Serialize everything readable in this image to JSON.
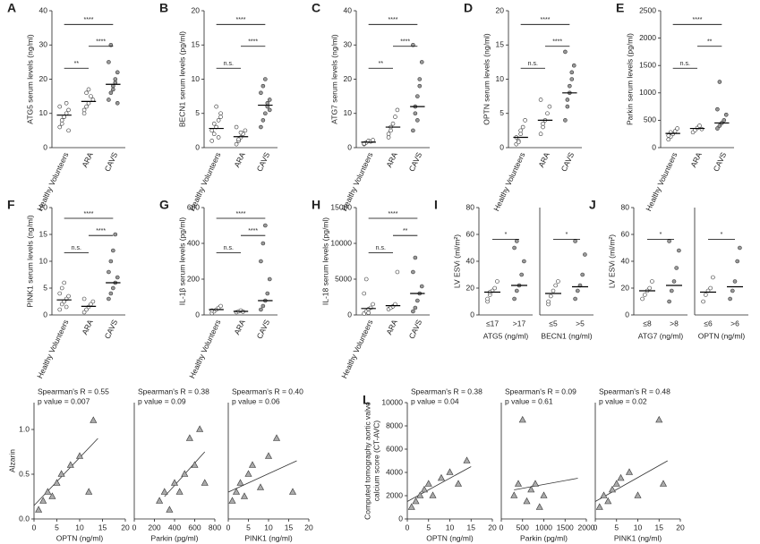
{
  "chart_data": [
    {
      "type": "strip",
      "panel": "A",
      "ylabel": "ATG5 serum levels (ng/ml)",
      "categories": [
        "Healthy Volunteers",
        "ARA",
        "CAVS"
      ],
      "groups": [
        [
          6,
          8,
          9,
          10,
          11,
          12,
          7,
          9,
          13,
          5
        ],
        [
          10,
          12,
          13,
          15,
          14,
          11,
          16,
          17
        ],
        [
          14,
          16,
          18,
          20,
          22,
          25,
          30,
          17,
          19,
          13
        ]
      ],
      "means": [
        9.5,
        13.5,
        18.5
      ],
      "ylim": [
        0,
        40
      ],
      "yticks": [
        0,
        10,
        20,
        30,
        40
      ],
      "comparisons": [
        {
          "from": 0,
          "to": 1,
          "label": "**"
        },
        {
          "from": 1,
          "to": 2,
          "label": "****"
        },
        {
          "from": 0,
          "to": 2,
          "label": "****"
        }
      ]
    },
    {
      "type": "strip",
      "panel": "B",
      "ylabel": "BECN1 serum levels (pg/ml)",
      "categories": [
        "Healthy Volunteers",
        "ARA",
        "CAVS"
      ],
      "groups": [
        [
          1,
          2,
          3,
          4,
          5,
          2.5,
          3.5,
          6,
          1.5,
          4.5
        ],
        [
          0.5,
          1,
          1.5,
          2,
          2.5,
          3,
          1.2,
          2.2
        ],
        [
          3,
          4,
          5,
          6,
          7,
          8,
          9,
          10,
          6.5,
          5.5
        ]
      ],
      "means": [
        2.8,
        1.6,
        6.2
      ],
      "ylim": [
        0,
        20
      ],
      "yticks": [
        0,
        5,
        10,
        15,
        20
      ],
      "comparisons": [
        {
          "from": 0,
          "to": 1,
          "label": "n.s."
        },
        {
          "from": 1,
          "to": 2,
          "label": "****"
        },
        {
          "from": 0,
          "to": 2,
          "label": "****"
        }
      ]
    },
    {
      "type": "strip",
      "panel": "C",
      "ylabel": "ATG7 serum levels (ng/ml)",
      "categories": [
        "Healthy Volunteers",
        "ARA",
        "CAVS"
      ],
      "groups": [
        [
          1,
          1.5,
          2,
          1.8,
          2.2,
          1.2
        ],
        [
          3,
          5,
          7,
          9,
          11,
          4,
          6
        ],
        [
          5,
          10,
          15,
          20,
          25,
          30,
          12,
          8,
          18
        ]
      ],
      "means": [
        1.6,
        6,
        12
      ],
      "ylim": [
        0,
        40
      ],
      "yticks": [
        0,
        10,
        20,
        30,
        40
      ],
      "comparisons": [
        {
          "from": 0,
          "to": 1,
          "label": "**"
        },
        {
          "from": 1,
          "to": 2,
          "label": "****"
        },
        {
          "from": 0,
          "to": 2,
          "label": "****"
        }
      ]
    },
    {
      "type": "strip",
      "panel": "D",
      "ylabel": "OPTN serum levels (ng/ml)",
      "categories": [
        "Healthy Volunteers",
        "ARA",
        "CAVS"
      ],
      "groups": [
        [
          0.5,
          1,
          2,
          3,
          4,
          1.5,
          0.8,
          2.5
        ],
        [
          2,
          3,
          4,
          5,
          6,
          7,
          3.5
        ],
        [
          4,
          6,
          8,
          10,
          12,
          14,
          7,
          9,
          11
        ]
      ],
      "means": [
        1.5,
        4,
        8
      ],
      "ylim": [
        0,
        20
      ],
      "yticks": [
        0,
        5,
        10,
        15,
        20
      ],
      "comparisons": [
        {
          "from": 0,
          "to": 1,
          "label": "n.s."
        },
        {
          "from": 1,
          "to": 2,
          "label": "****"
        },
        {
          "from": 0,
          "to": 2,
          "label": "****"
        }
      ]
    },
    {
      "type": "strip",
      "panel": "E",
      "ylabel": "Parkin serum levels (pg/ml)",
      "categories": [
        "Healthy Volunteers",
        "ARA",
        "CAVS"
      ],
      "groups": [
        [
          150,
          200,
          250,
          300,
          350,
          220,
          280
        ],
        [
          280,
          320,
          360,
          400,
          340
        ],
        [
          350,
          400,
          450,
          500,
          600,
          700,
          1200
        ]
      ],
      "means": [
        260,
        350,
        450
      ],
      "ylim": [
        0,
        2500
      ],
      "yticks": [
        0,
        500,
        1000,
        1500,
        2000,
        2500
      ],
      "comparisons": [
        {
          "from": 0,
          "to": 1,
          "label": "n.s."
        },
        {
          "from": 1,
          "to": 2,
          "label": "**"
        },
        {
          "from": 0,
          "to": 2,
          "label": "****"
        }
      ]
    },
    {
      "type": "strip",
      "panel": "F",
      "ylabel": "PINK1 serum levels (ng/ml)",
      "categories": [
        "Healthy Volunteers",
        "ARA",
        "CAVS"
      ],
      "groups": [
        [
          1,
          2,
          2.5,
          3,
          3.5,
          4,
          5,
          6,
          1.5
        ],
        [
          0.5,
          1,
          1.5,
          2,
          2.5,
          3
        ],
        [
          3,
          4,
          5,
          6,
          7,
          8,
          10,
          12,
          15
        ]
      ],
      "means": [
        2.8,
        1.6,
        6
      ],
      "ylim": [
        0,
        20
      ],
      "yticks": [
        0,
        5,
        10,
        15,
        20
      ],
      "comparisons": [
        {
          "from": 0,
          "to": 1,
          "label": "n.s."
        },
        {
          "from": 1,
          "to": 2,
          "label": "****"
        },
        {
          "from": 0,
          "to": 2,
          "label": "****"
        }
      ]
    },
    {
      "type": "strip",
      "panel": "G",
      "ylabel": "IL-1β serum levels (pg/ml)",
      "categories": [
        "Healthy Volunteers",
        "ARA",
        "CAVS"
      ],
      "groups": [
        [
          10,
          20,
          30,
          40,
          50,
          25
        ],
        [
          15,
          20,
          25,
          18
        ],
        [
          30,
          50,
          80,
          120,
          200,
          300,
          400,
          500
        ]
      ],
      "means": [
        30,
        20,
        80
      ],
      "ylim": [
        0,
        600
      ],
      "yticks": [
        0,
        200,
        400,
        600
      ],
      "comparisons": [
        {
          "from": 0,
          "to": 1,
          "label": "n.s."
        },
        {
          "from": 1,
          "to": 2,
          "label": "****"
        },
        {
          "from": 0,
          "to": 2,
          "label": "****"
        }
      ]
    },
    {
      "type": "strip",
      "panel": "H",
      "ylabel": "IL-18 serum levels (pg/ml)",
      "categories": [
        "Healthy Volunteers",
        "ARA",
        "CAVS"
      ],
      "groups": [
        [
          200,
          500,
          800,
          1000,
          1500,
          3000,
          5000,
          300
        ],
        [
          800,
          1000,
          1200,
          1500,
          6000
        ],
        [
          500,
          1000,
          2000,
          3000,
          4000,
          6000,
          8000
        ]
      ],
      "means": [
        900,
        1300,
        3000
      ],
      "ylim": [
        0,
        15000
      ],
      "yticks": [
        0,
        5000,
        10000,
        15000
      ],
      "comparisons": [
        {
          "from": 0,
          "to": 1,
          "label": "n.s."
        },
        {
          "from": 1,
          "to": 2,
          "label": "**"
        },
        {
          "from": 0,
          "to": 2,
          "label": "****"
        }
      ]
    },
    {
      "type": "strip",
      "panel": "I",
      "ylabel": "LV ESVi (ml/m²)",
      "xlabel": "ATG5 (ng/ml)",
      "categories": [
        "≤17",
        ">17"
      ],
      "groups": [
        [
          10,
          15,
          18,
          20,
          25,
          12,
          17
        ],
        [
          12,
          18,
          22,
          30,
          40,
          50,
          55
        ]
      ],
      "means": [
        17,
        22
      ],
      "ylim": [
        0,
        80
      ],
      "yticks": [
        0,
        20,
        40,
        60,
        80
      ],
      "comparisons": [
        {
          "from": 0,
          "to": 1,
          "label": "*"
        }
      ]
    },
    {
      "type": "strip",
      "xlabel": "BECN1 (ng/ml)",
      "categories": [
        "≤5",
        ">5"
      ],
      "groups": [
        [
          8,
          14,
          18,
          22,
          25,
          10
        ],
        [
          12,
          18,
          22,
          30,
          45,
          55
        ]
      ],
      "means": [
        16,
        21
      ],
      "ylim": [
        0,
        80
      ],
      "comparisons": [
        {
          "from": 0,
          "to": 1,
          "label": "*"
        }
      ]
    },
    {
      "type": "strip",
      "panel": "J",
      "ylabel": "LV ESVi (ml/m²)",
      "xlabel": "ATG7 (ng/ml)",
      "categories": [
        "≤8",
        ">8"
      ],
      "groups": [
        [
          12,
          15,
          18,
          20,
          25
        ],
        [
          10,
          18,
          25,
          35,
          48,
          55
        ]
      ],
      "means": [
        18,
        22
      ],
      "ylim": [
        0,
        80
      ],
      "yticks": [
        0,
        20,
        40,
        60,
        80
      ],
      "comparisons": [
        {
          "from": 0,
          "to": 1,
          "label": "*"
        }
      ]
    },
    {
      "type": "strip",
      "xlabel": "OPTN (ng/ml)",
      "categories": [
        "≤6",
        ">6"
      ],
      "groups": [
        [
          10,
          15,
          18,
          20,
          28
        ],
        [
          12,
          18,
          25,
          40,
          50
        ]
      ],
      "means": [
        17,
        21
      ],
      "ylim": [
        0,
        80
      ],
      "comparisons": [
        {
          "from": 0,
          "to": 1,
          "label": "*"
        }
      ]
    },
    {
      "type": "scatter",
      "panel": "K",
      "ylabel": "Alzarin",
      "xlabel": "OPTN (ng/ml)",
      "annotations": [
        "Spearman's R = 0.55",
        "p value = 0.007"
      ],
      "x": [
        1,
        2,
        3,
        4,
        5,
        6,
        8,
        10,
        12,
        13
      ],
      "y": [
        0.1,
        0.2,
        0.3,
        0.25,
        0.4,
        0.5,
        0.6,
        0.7,
        0.3,
        1.1
      ],
      "fit_x": [
        0,
        14
      ],
      "fit_y": [
        0.15,
        0.9
      ],
      "xlim": [
        0,
        20
      ],
      "xticks": [
        0,
        5,
        10,
        15,
        20
      ],
      "ylim": [
        0,
        1.3
      ],
      "yticks": [
        {
          "value": 0,
          "label": "0.0"
        },
        {
          "value": 0.5,
          "label": "0.5"
        },
        {
          "value": 1,
          "label": "1.0"
        }
      ]
    },
    {
      "type": "scatter",
      "xlabel": "Parkin (pg/ml)",
      "annotations": [
        "Spearman's R = 0.38",
        "p value = 0.09"
      ],
      "x": [
        250,
        300,
        350,
        400,
        450,
        500,
        550,
        600,
        650,
        700
      ],
      "y": [
        0.2,
        0.3,
        0.1,
        0.4,
        0.3,
        0.5,
        0.9,
        0.6,
        1.0,
        0.4
      ],
      "fit_x": [
        300,
        700
      ],
      "fit_y": [
        0.25,
        0.75
      ],
      "xlim": [
        0,
        800
      ],
      "xticks": [
        0,
        200,
        400,
        600,
        800
      ],
      "ylim": [
        0,
        1.3
      ]
    },
    {
      "type": "scatter",
      "xlabel": "PINK1 (ng/ml)",
      "annotations": [
        "Spearman's R = 0.40",
        "p value = 0.06"
      ],
      "x": [
        1,
        2,
        3,
        4,
        5,
        6,
        8,
        10,
        12,
        16
      ],
      "y": [
        0.2,
        0.3,
        0.4,
        0.25,
        0.5,
        0.6,
        0.35,
        0.7,
        0.9,
        0.3
      ],
      "fit_x": [
        0,
        17
      ],
      "fit_y": [
        0.3,
        0.65
      ],
      "xlim": [
        0,
        20
      ],
      "xticks": [
        0,
        5,
        10,
        15,
        20
      ],
      "ylim": [
        0,
        1.3
      ]
    },
    {
      "type": "scatter",
      "panel": "L",
      "ylabel": [
        "Computed tomography aortic valve",
        "calcium score (CT-AVC)"
      ],
      "xlabel": "OPTN (ng/ml)",
      "annotations": [
        "Spearman's R = 0.38",
        "p value = 0.04"
      ],
      "x": [
        1,
        2,
        3,
        4,
        5,
        6,
        8,
        10,
        12,
        14
      ],
      "y": [
        1000,
        1500,
        2000,
        2500,
        3000,
        2000,
        3500,
        4000,
        3000,
        5000
      ],
      "fit_x": [
        0,
        15
      ],
      "fit_y": [
        1500,
        4500
      ],
      "xlim": [
        0,
        20
      ],
      "xticks": [
        0,
        5,
        10,
        15,
        20
      ],
      "ylim": [
        0,
        10000
      ],
      "yticks": [
        0,
        2000,
        4000,
        6000,
        8000,
        10000
      ]
    },
    {
      "type": "scatter",
      "xlabel": "Parkin (pg/ml)",
      "annotations": [
        "Spearman's R = 0.09",
        "p value = 0.61"
      ],
      "x": [
        300,
        400,
        500,
        600,
        700,
        800,
        900,
        1000
      ],
      "y": [
        2000,
        3000,
        8500,
        1500,
        2500,
        3000,
        1000,
        2000
      ],
      "fit_x": [
        300,
        1800
      ],
      "fit_y": [
        2500,
        3500
      ],
      "xlim": [
        0,
        2000
      ],
      "xticks": [
        0,
        500,
        1000,
        1500,
        2000
      ],
      "ylim": [
        0,
        10000
      ]
    },
    {
      "type": "scatter",
      "xlabel": "PINK1 (ng/ml)",
      "annotations": [
        "Spearman's R = 0.48",
        "p value = 0.02"
      ],
      "x": [
        1,
        2,
        3,
        4,
        5,
        6,
        8,
        10,
        15,
        16
      ],
      "y": [
        1000,
        2000,
        1500,
        2500,
        3000,
        3500,
        4000,
        2000,
        8500,
        3000
      ],
      "fit_x": [
        0,
        17
      ],
      "fit_y": [
        1500,
        5000
      ],
      "xlim": [
        0,
        20
      ],
      "xticks": [
        0,
        5,
        10,
        15,
        20
      ],
      "ylim": [
        0,
        10000
      ]
    }
  ]
}
